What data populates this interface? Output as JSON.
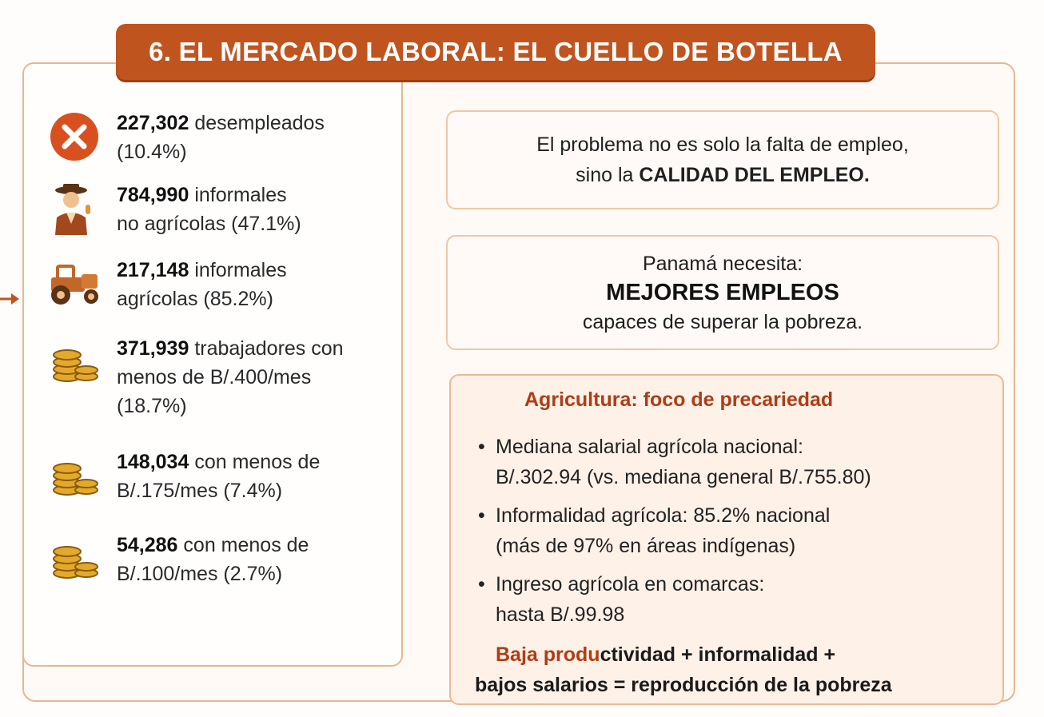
{
  "title": "6. EL MERCADO LABORAL: EL CUELLO DE BOTELLA",
  "stats": [
    {
      "icon": "x-circle-icon",
      "bold": "227,302",
      "rest": " desempleados",
      "line2": "(10.4%)"
    },
    {
      "icon": "informal-worker-icon",
      "bold": "784,990",
      "rest": " informales",
      "line2": "no agrícolas (47.1%)"
    },
    {
      "icon": "tractor-icon",
      "bold": "217,148",
      "rest": " informales",
      "line2": "agrícolas (85.2%)"
    },
    {
      "icon": "coins-icon",
      "bold": "371,939",
      "rest": " trabajadores con",
      "line2": "menos de B/.400/mes",
      "line3": "(18.7%)"
    },
    {
      "icon": "coins-icon",
      "bold": "148,034",
      "rest": " con menos de",
      "line2": "B/.175/mes (7.4%)"
    },
    {
      "icon": "coins-icon",
      "bold": "54,286",
      "rest": " con menos de",
      "line2": "B/.100/mes (2.7%)"
    }
  ],
  "box1": {
    "line1": "El problema no es solo la falta de empleo,",
    "line2_prefix": "sino la ",
    "line2_bold": "CALIDAD DEL EMPLEO."
  },
  "box2": {
    "line1": "Panamá necesita:",
    "big": "MEJORES EMPLEOS",
    "line3": "capaces de superar la pobreza."
  },
  "box3": {
    "heading": "Agricultura: foco de precariedad",
    "bullets": [
      {
        "l1": "Mediana salarial agrícola nacional:",
        "l2": "B/.302.94 (vs. mediana general B/.755.80)"
      },
      {
        "l1": "Informalidad agrícola: 85.2% nacional",
        "l2": "(más de 97% en áreas indígenas)"
      },
      {
        "l1": "Ingreso agrícola en comarcas:",
        "l2": "hasta B/.99.98"
      }
    ],
    "conclusion_hl": "Baja produ",
    "conclusion_l1": "ctividad + informalidad +",
    "conclusion_l2": "bajos salarios = reproducción de la pobreza"
  },
  "colors": {
    "accent": "#c0541f",
    "border": "#e7b78f",
    "highlight": "#b03c14",
    "coin": "#e3a92a"
  }
}
